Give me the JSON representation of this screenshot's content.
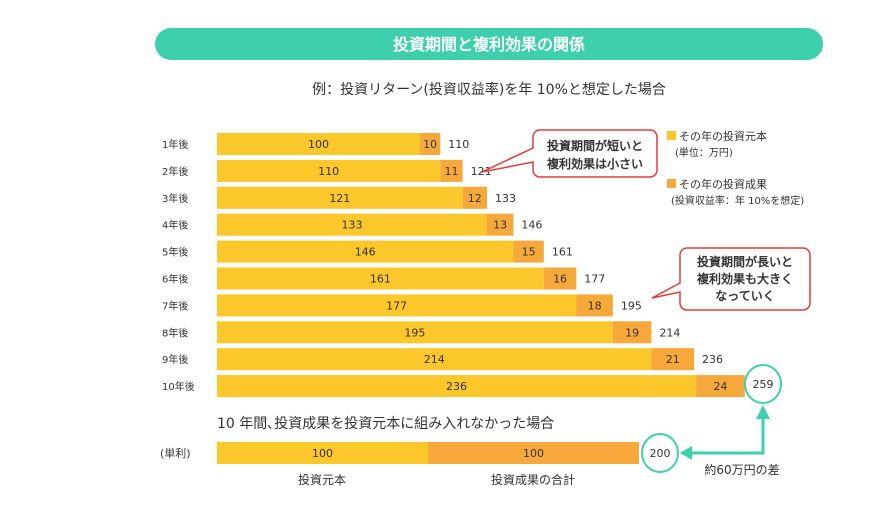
{
  "title": "投資期間と複利効果の関係",
  "subtitle": "例：投資リターン(投資収益率)を年 10%と想定した場合",
  "colors": {
    "banner": "#3ecfad",
    "principal": "#fbc72a",
    "gain": "#f6a93a",
    "callout_border": "#e03c3c",
    "accent": "#3ecfad"
  },
  "legend": [
    {
      "label": "その年の投資元本",
      "note": "(単位：万円)"
    },
    {
      "label": "その年の投資成果",
      "note": "(投資収益率：年 10%を想定)"
    }
  ],
  "callouts": [
    {
      "lines": [
        "投資期間が短いと",
        "複利効果は小さい"
      ]
    },
    {
      "lines": [
        "投資期間が長いと",
        "複利効果も大きく",
        "なっていく"
      ]
    }
  ],
  "chart_data": {
    "type": "bar",
    "stacked": true,
    "orientation": "horizontal",
    "categories": [
      "1年後",
      "2年後",
      "3年後",
      "4年後",
      "5年後",
      "6年後",
      "7年後",
      "8年後",
      "9年後",
      "10年後"
    ],
    "series": [
      {
        "name": "その年の投資元本",
        "values": [
          100,
          110,
          121,
          133,
          146,
          161,
          177,
          195,
          214,
          236
        ]
      },
      {
        "name": "その年の投資成果",
        "values": [
          10,
          11,
          12,
          13,
          15,
          16,
          18,
          19,
          21,
          24
        ]
      }
    ],
    "totals": [
      "110",
      "121",
      "133",
      "146",
      "161",
      "177",
      "195",
      "214",
      "236",
      "259"
    ],
    "simple_interest": {
      "heading": "10 年間､投資成果を投資元本に組み入れなかった場合",
      "label": "(単利)",
      "values": [
        100,
        100
      ],
      "segment_labels": [
        "投資元本",
        "投資成果の合計"
      ],
      "total": "200"
    },
    "difference_label": "約60万円の差"
  }
}
